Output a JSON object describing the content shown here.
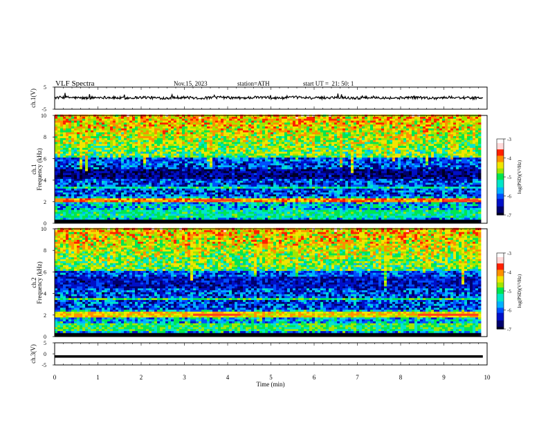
{
  "header": {
    "title": "VLF Spectra",
    "date": "Nov.15, 2023",
    "station": "station=ATH",
    "start": "start UT =  21: 50: 1"
  },
  "colors": {
    "waveform": "#000000",
    "colormap": [
      "#000022",
      "#00006e",
      "#0010c8",
      "#0050ff",
      "#00b0ff",
      "#00e6c8",
      "#00e650",
      "#a0e600",
      "#f0e600",
      "#ff9000",
      "#ff2000",
      "#ffdada",
      "#ffffff"
    ]
  },
  "chart_data": [
    {
      "type": "line",
      "name": "ch1-waveform",
      "ylabel": "ch.1(V)",
      "ylim": [
        -5,
        5
      ],
      "yticks": [
        "5",
        "-5"
      ],
      "xlim": [
        0,
        10
      ],
      "approx_level": 0.2,
      "approx_amplitude": 0.6
    },
    {
      "type": "heatmap",
      "name": "ch1-spectrogram",
      "ylabel": "ch.1 Frequency (kHz)",
      "ylim": [
        0,
        10
      ],
      "yticks": [
        "0",
        "2",
        "4",
        "6",
        "8",
        "10"
      ],
      "xlim": [
        0,
        10
      ],
      "data_xmax": 9.8,
      "colorbar": {
        "label": "log(PSD)(V²/Hz)",
        "range": [
          -7,
          -3
        ],
        "ticks": [
          "-3",
          "-4",
          "-5",
          "-6",
          "-7"
        ]
      },
      "bands": [
        {
          "f_low": 1.9,
          "f_high": 2.2,
          "level": -4.0
        },
        {
          "f_low": 4.0,
          "f_high": 5.0,
          "level": -6.6
        },
        {
          "f_low": 3.2,
          "f_high": 3.4,
          "level": -5.2
        },
        {
          "f_low": 0.4,
          "f_high": 1.2,
          "level": -5.2
        }
      ],
      "bursts": [
        {
          "t_start": 3.2,
          "t_end": 4.3,
          "freq": 2.1
        },
        {
          "t_start": 9.0,
          "t_end": 9.8,
          "freq": 2.1
        }
      ]
    },
    {
      "type": "heatmap",
      "name": "ch2-spectrogram",
      "ylabel": "ch.2 Frequency (kHz)",
      "ylim": [
        0,
        10
      ],
      "yticks": [
        "0",
        "2",
        "4",
        "6",
        "8",
        "10"
      ],
      "xlim": [
        0,
        10
      ],
      "data_xmax": 9.8,
      "colorbar": {
        "label": "log(PSD)(V²/Hz)",
        "range": [
          -7,
          -3
        ],
        "ticks": [
          "-3",
          "-4",
          "-5",
          "-6",
          "-7"
        ]
      },
      "bands": [
        {
          "f_low": 1.7,
          "f_high": 2.3,
          "level": -4.3
        },
        {
          "f_low": 4.5,
          "f_high": 5.5,
          "level": -6.4
        },
        {
          "f_low": 3.3,
          "f_high": 3.5,
          "level": -5.0
        },
        {
          "f_low": 0.4,
          "f_high": 1.2,
          "level": -5.0
        }
      ],
      "bursts": [
        {
          "t_start": 3.2,
          "t_end": 4.3,
          "freq": 2.0
        },
        {
          "t_start": 8.4,
          "t_end": 9.8,
          "freq": 2.0
        }
      ]
    },
    {
      "type": "line",
      "name": "ch3-waveform",
      "ylabel": "ch.3(V)",
      "ylim": [
        -5,
        5
      ],
      "yticks": [
        "5",
        "0",
        "-5"
      ],
      "xlim": [
        0,
        10
      ],
      "approx_level": -1.2,
      "approx_amplitude": 0.0
    }
  ],
  "xaxis": {
    "label": "Time (min)",
    "ticks": [
      "0",
      "1",
      "2",
      "3",
      "4",
      "5",
      "6",
      "7",
      "8",
      "9",
      "10"
    ]
  }
}
